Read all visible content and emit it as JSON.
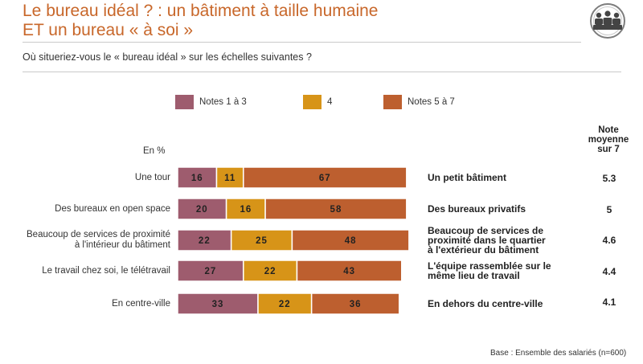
{
  "header": {
    "title_line1": "Le bureau idéal ? : un bâtiment à taille humaine",
    "title_line2": "ET un bureau « à soi »",
    "question": "Où situeriez-vous le « bureau idéal » sur les échelles suivantes ?",
    "icon": "group-of-people-icon"
  },
  "legend": [
    {
      "label": "Notes 1 à 3",
      "color": "#9e5c6e"
    },
    {
      "label": "4",
      "color": "#d79418"
    },
    {
      "label": "Notes 5 à 7",
      "color": "#bd5f2f"
    }
  ],
  "note_header": [
    "Note",
    "moyenne",
    "sur 7"
  ],
  "unit_label": "En %",
  "chart_data": {
    "type": "bar",
    "orientation": "horizontal",
    "stacked": true,
    "unit": "%",
    "categories": [
      "Une tour",
      "Des bureaux en open space",
      "Beaucoup de services de proximité à l'intérieur du bâtiment",
      "Le travail chez soi, le télétravail",
      "En centre-ville"
    ],
    "left_labels": [
      [
        "Une tour"
      ],
      [
        "Des bureaux en open space"
      ],
      [
        "Beaucoup de services de proximité",
        "à l'intérieur du bâtiment"
      ],
      [
        "Le travail chez soi, le télétravail"
      ],
      [
        "En centre-ville"
      ]
    ],
    "right_labels": [
      [
        "Un petit bâtiment"
      ],
      [
        "Des bureaux privatifs"
      ],
      [
        "Beaucoup de services de",
        "proximité dans le quartier",
        "à l'extérieur du bâtiment"
      ],
      [
        "L'équipe rassemblée sur le",
        "même lieu de travail"
      ],
      [
        "En dehors du centre-ville"
      ]
    ],
    "series": [
      {
        "name": "Notes 1 à 3",
        "color": "#9e5c6e",
        "values": [
          16,
          20,
          22,
          27,
          33
        ]
      },
      {
        "name": "4",
        "color": "#d79418",
        "values": [
          11,
          16,
          25,
          22,
          22
        ]
      },
      {
        "name": "Notes 5 à 7",
        "color": "#bd5f2f",
        "values": [
          67,
          58,
          48,
          43,
          36
        ]
      }
    ],
    "averages": [
      "5.3",
      "5",
      "4.6",
      "4.4",
      "4.1"
    ],
    "xlim": [
      0,
      100
    ]
  },
  "footer": {
    "base": "Base : Ensemble des salariés (n=600)"
  }
}
